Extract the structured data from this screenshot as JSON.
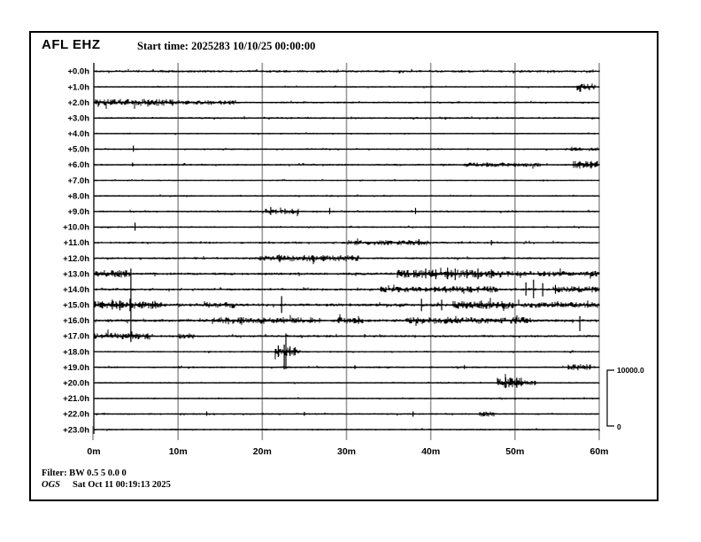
{
  "header": {
    "station": "AFL EHZ",
    "start_time": "Start time: 2025283 10/10/25 00:00:00"
  },
  "footer": {
    "filter": "Filter: BW 0.5 5 0.0 0",
    "agency": "OGS",
    "generated": "Sat Oct 11 00:19:13 2025"
  },
  "scale_bar": {
    "max_label": "10000.0",
    "min_label": "0"
  },
  "colors": {
    "trace": "#000000",
    "grid": "#999999",
    "background": "#ffffff",
    "text": "#000000"
  },
  "chart_data": {
    "type": "line",
    "subtype": "helicorder",
    "title": "AFL EHZ",
    "xlabel_units": "minutes",
    "x_range_minutes": [
      0,
      60
    ],
    "x_tick_labels": [
      "0m",
      "10m",
      "20m",
      "30m",
      "40m",
      "50m",
      "60m"
    ],
    "x_tick_minutes": [
      0,
      10,
      20,
      30,
      40,
      50,
      60
    ],
    "grid": true,
    "amplitude_scale": {
      "max": 10000.0,
      "min": 0
    },
    "rows": [
      {
        "label": "+0.0h",
        "base": 1.3,
        "segments": [],
        "spikes": []
      },
      {
        "label": "+1.0h",
        "base": 0.8,
        "segments": [
          [
            57.3,
            59.5,
            3.0
          ]
        ],
        "spikes": []
      },
      {
        "label": "+2.0h",
        "base": 1.0,
        "segments": [
          [
            0,
            9.5,
            2.6
          ],
          [
            9.5,
            17,
            1.6
          ]
        ],
        "spikes": []
      },
      {
        "label": "+3.0h",
        "base": 1.1,
        "segments": [],
        "spikes": []
      },
      {
        "label": "+4.0h",
        "base": 0.8,
        "segments": [],
        "spikes": []
      },
      {
        "label": "+5.0h",
        "base": 0.8,
        "segments": [
          [
            56,
            60,
            1.2
          ]
        ],
        "spikes": [
          [
            4.7,
            4,
            3
          ]
        ]
      },
      {
        "label": "+6.0h",
        "base": 1.0,
        "segments": [
          [
            44,
            53,
            1.4
          ],
          [
            56.8,
            59.8,
            3.0
          ]
        ],
        "spikes": [
          [
            4.6,
            2.5,
            2
          ]
        ]
      },
      {
        "label": "+7.0h",
        "base": 0.8,
        "segments": [],
        "spikes": []
      },
      {
        "label": "+8.0h",
        "base": 0.9,
        "segments": [],
        "spikes": []
      },
      {
        "label": "+9.0h",
        "base": 1.0,
        "segments": [
          [
            20,
            24.5,
            1.8
          ]
        ],
        "spikes": [
          [
            21,
            5,
            4
          ],
          [
            22.7,
            3,
            3
          ],
          [
            28,
            4,
            3
          ],
          [
            38.2,
            4,
            3
          ]
        ]
      },
      {
        "label": "+10.0h",
        "base": 0.9,
        "segments": [],
        "spikes": [
          [
            4.9,
            5,
            4
          ]
        ]
      },
      {
        "label": "+11.0h",
        "base": 1.1,
        "segments": [
          [
            30,
            40,
            1.6
          ]
        ],
        "spikes": [
          [
            38.6,
            4,
            3
          ],
          [
            47.2,
            3,
            3
          ]
        ]
      },
      {
        "label": "+12.0h",
        "base": 1.1,
        "segments": [
          [
            19,
            21.5,
            1.5
          ],
          [
            21.5,
            31.5,
            2.3
          ]
        ],
        "spikes": [
          [
            22,
            4,
            3
          ]
        ]
      },
      {
        "label": "+13.0h",
        "base": 1.4,
        "segments": [
          [
            0,
            4.5,
            2.5
          ],
          [
            36,
            48.5,
            2.8
          ],
          [
            48.5,
            60,
            1.5
          ]
        ],
        "spikes": [
          [
            4.4,
            6,
            77
          ],
          [
            38,
            4,
            4
          ],
          [
            39.4,
            6,
            5
          ],
          [
            40.6,
            5,
            6
          ],
          [
            42,
            7,
            6
          ],
          [
            42.9,
            6,
            7
          ],
          [
            44.3,
            5,
            5
          ],
          [
            45.6,
            6,
            6
          ],
          [
            47.2,
            5,
            5
          ]
        ]
      },
      {
        "label": "+14.0h",
        "base": 1.3,
        "segments": [
          [
            34,
            41,
            1.8
          ],
          [
            41,
            48,
            2.2
          ],
          [
            54.5,
            60,
            2.0
          ]
        ],
        "spikes": [
          [
            51.3,
            8,
            7
          ],
          [
            52.2,
            11,
            10
          ],
          [
            53.3,
            7,
            8
          ],
          [
            54.8,
            5,
            5
          ]
        ]
      },
      {
        "label": "+15.0h",
        "base": 1.6,
        "segments": [
          [
            0,
            8,
            2.5
          ],
          [
            13,
            17,
            1.5
          ],
          [
            42.5,
            50,
            2.5
          ],
          [
            50,
            60,
            1.5
          ]
        ],
        "spikes": [
          [
            1,
            4,
            4
          ],
          [
            2.2,
            6,
            5
          ],
          [
            3.1,
            5,
            6
          ],
          [
            4.3,
            7,
            7
          ],
          [
            7,
            4,
            4
          ],
          [
            22.3,
            10,
            9
          ],
          [
            38.9,
            7,
            7
          ],
          [
            41.3,
            6,
            6
          ],
          [
            46,
            5,
            4
          ]
        ]
      },
      {
        "label": "+16.0h",
        "base": 1.5,
        "segments": [
          [
            14,
            27,
            2.0
          ],
          [
            29,
            32,
            2.0
          ],
          [
            37,
            52,
            2.0
          ]
        ],
        "spikes": [
          [
            57.7,
            5,
            12
          ]
        ]
      },
      {
        "label": "+17.0h",
        "base": 1.2,
        "segments": [
          [
            0,
            7,
            2.5
          ],
          [
            10,
            12,
            2.0
          ]
        ],
        "spikes": [
          [
            4.4,
            6,
            4
          ],
          [
            22.8,
            3,
            36
          ]
        ]
      },
      {
        "label": "+18.0h",
        "base": 0.9,
        "segments": [
          [
            21.5,
            24.5,
            3.5
          ]
        ],
        "spikes": [
          [
            21.9,
            7,
            6
          ],
          [
            22.6,
            8,
            20
          ],
          [
            23.3,
            6,
            5
          ],
          [
            23.9,
            5,
            4
          ]
        ]
      },
      {
        "label": "+19.0h",
        "base": 1.0,
        "segments": [
          [
            56.3,
            59,
            2.2
          ]
        ],
        "spikes": [
          [
            22.8,
            2,
            2
          ],
          [
            31,
            2.5,
            2
          ],
          [
            44,
            2.5,
            2
          ]
        ]
      },
      {
        "label": "+20.0h",
        "base": 0.9,
        "segments": [
          [
            47.9,
            50.8,
            4.5
          ],
          [
            50.8,
            52.5,
            2.0
          ]
        ],
        "spikes": [
          [
            48.9,
            6,
            6
          ],
          [
            50.2,
            5,
            5
          ]
        ]
      },
      {
        "label": "+21.0h",
        "base": 0.8,
        "segments": [],
        "spikes": []
      },
      {
        "label": "+22.0h",
        "base": 0.9,
        "segments": [
          [
            45.8,
            47.5,
            1.8
          ]
        ],
        "spikes": [
          [
            13.4,
            3,
            2
          ],
          [
            25,
            2.5,
            2
          ],
          [
            37.9,
            3,
            3
          ]
        ]
      },
      {
        "label": "+23.0h",
        "base": 0.9,
        "segments": [],
        "spikes": []
      }
    ]
  }
}
